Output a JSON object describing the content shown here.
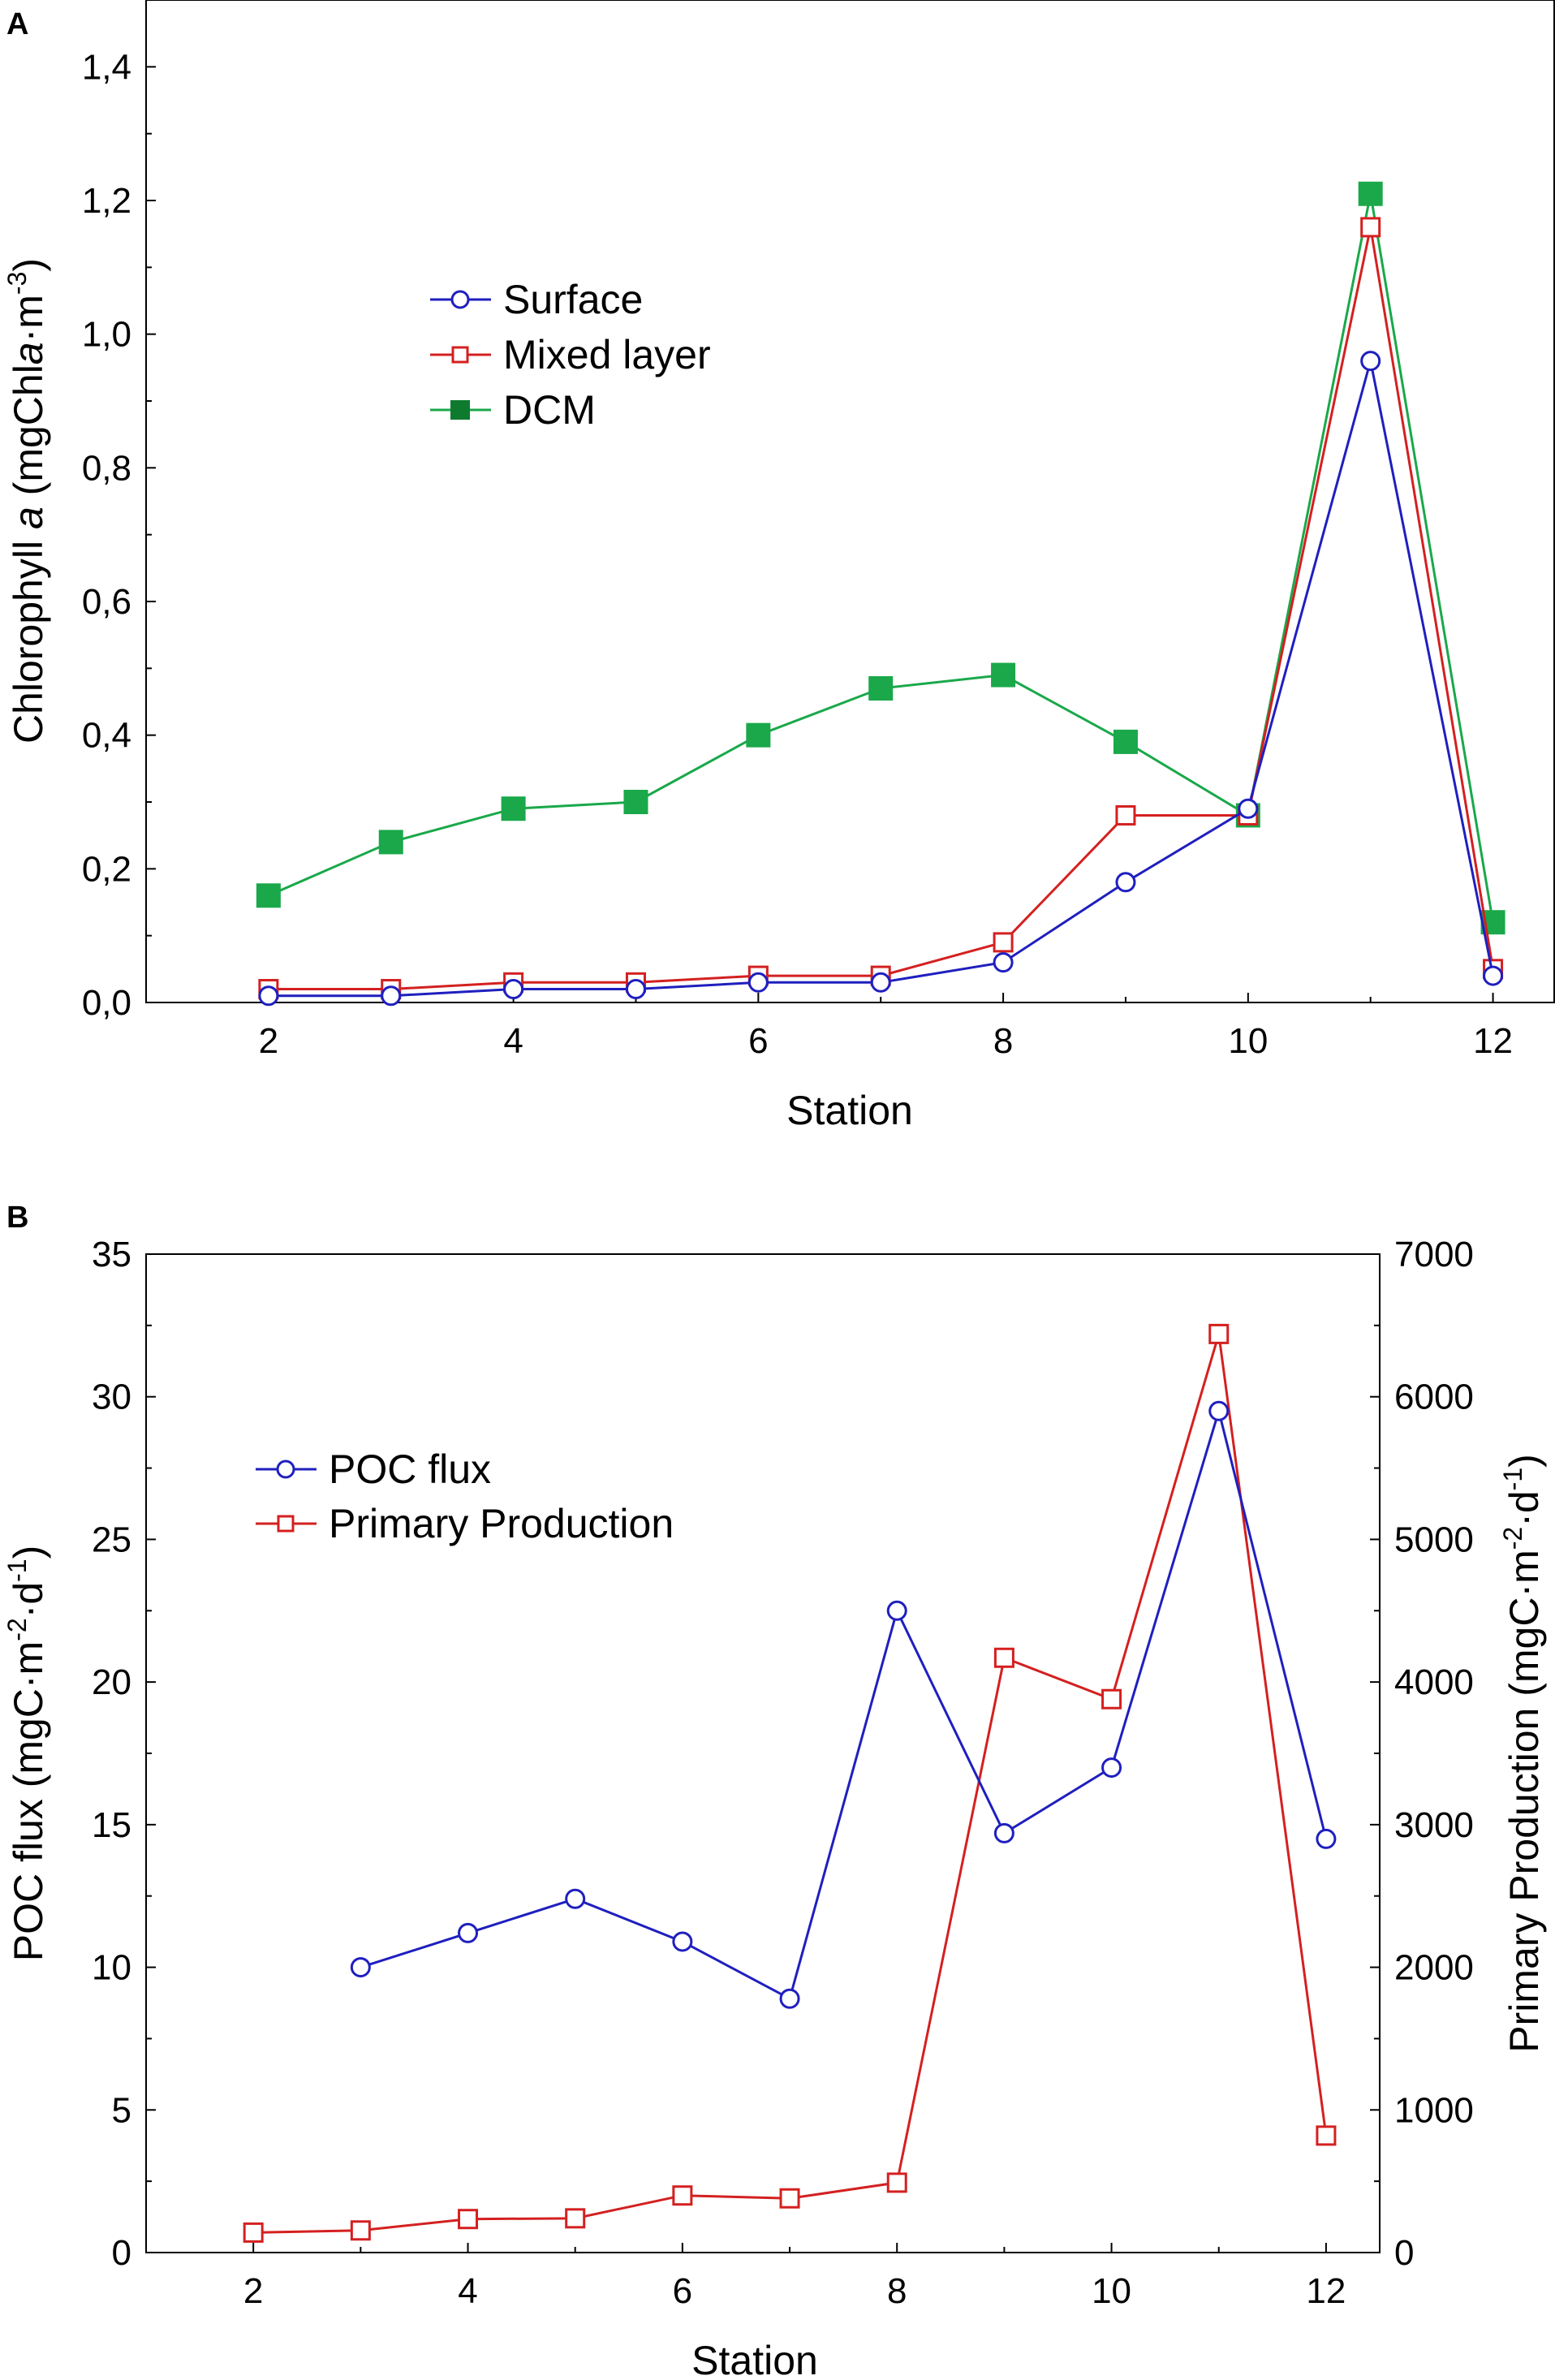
{
  "chart_data": [
    {
      "panel": "A",
      "type": "line",
      "xlabel": "Station",
      "ylabel": "Chlorophyll a (mgChla·m-3)",
      "ylabel_parts": {
        "prefix": "Chlorophyll ",
        "italic": "a",
        "unit_a": " (mgChl",
        "unit_b": "·m",
        "sup": "-3",
        "close": ")"
      },
      "xlim": [
        1,
        12.5
      ],
      "ylim": [
        0,
        1.5
      ],
      "xticks": [
        2,
        4,
        6,
        8,
        10,
        12
      ],
      "yticks": [
        0,
        0.2,
        0.4,
        0.6,
        0.8,
        1.0,
        1.2,
        1.4
      ],
      "ytick_labels": [
        "0,0",
        "0,2",
        "0,4",
        "0,6",
        "0,8",
        "1,0",
        "1,2",
        "1,4"
      ],
      "legend_position": "upper-left",
      "series": [
        {
          "name": "Surface",
          "color": "#1f1fbf",
          "marker": "circle-open",
          "x": [
            2,
            3,
            4,
            5,
            6,
            7,
            8,
            9,
            10,
            11,
            12
          ],
          "values": [
            0.01,
            0.01,
            0.02,
            0.02,
            0.03,
            0.03,
            0.06,
            0.18,
            0.29,
            0.96,
            0.04
          ]
        },
        {
          "name": "Mixed layer",
          "color": "#d42020",
          "marker": "square-open",
          "x": [
            2,
            3,
            4,
            5,
            6,
            7,
            8,
            9,
            10,
            11,
            12
          ],
          "values": [
            0.02,
            0.02,
            0.03,
            0.03,
            0.04,
            0.04,
            0.09,
            0.28,
            0.28,
            1.16,
            0.05
          ]
        },
        {
          "name": "DCM",
          "color": "#1aa84a",
          "marker": "square-filled",
          "x": [
            2,
            3,
            4,
            5,
            6,
            7,
            8,
            9,
            10,
            11,
            12
          ],
          "values": [
            0.16,
            0.24,
            0.29,
            0.3,
            0.4,
            0.47,
            0.49,
            0.39,
            0.28,
            1.21,
            0.12
          ]
        }
      ]
    },
    {
      "panel": "B",
      "type": "line",
      "xlabel": "Station",
      "ylabel_left": "POC flux (mgC·m-2·d-1)",
      "ylabel_left_parts": {
        "a": "POC flux (mgC·m",
        "sup1": "-2",
        "b": "·d",
        "sup2": "-1",
        "c": ")"
      },
      "ylabel_right": "Primary Production (mgC·m-2·d-1)",
      "ylabel_right_parts": {
        "a": "Primary Production (mgC·m",
        "sup1": "-2",
        "b": "·d",
        "sup2": "-1",
        "c": ")"
      },
      "xlim": [
        1,
        12.5
      ],
      "ylim_left": [
        0,
        35
      ],
      "ylim_right": [
        0,
        7000
      ],
      "xticks": [
        2,
        4,
        6,
        8,
        10,
        12
      ],
      "yticks_left": [
        0,
        5,
        10,
        15,
        20,
        25,
        30,
        35
      ],
      "yticks_right": [
        0,
        1000,
        2000,
        3000,
        4000,
        5000,
        6000,
        7000
      ],
      "legend_position": "upper-left",
      "series": [
        {
          "name": "POC flux",
          "axis": "left",
          "color": "#1f1fbf",
          "marker": "circle-open",
          "x": [
            3,
            4,
            5,
            6,
            7,
            8,
            9,
            10,
            11,
            12
          ],
          "values": [
            10.0,
            11.2,
            12.4,
            10.9,
            8.9,
            22.5,
            14.7,
            17.0,
            29.5,
            14.5
          ]
        },
        {
          "name": "Primary Production",
          "axis": "right",
          "color": "#d42020",
          "marker": "square-open",
          "x": [
            2,
            3,
            4,
            5,
            6,
            7,
            8,
            9,
            10,
            11,
            12
          ],
          "values": [
            140,
            155,
            235,
            240,
            400,
            380,
            490,
            4170,
            3880,
            6440,
            820
          ]
        }
      ]
    }
  ]
}
